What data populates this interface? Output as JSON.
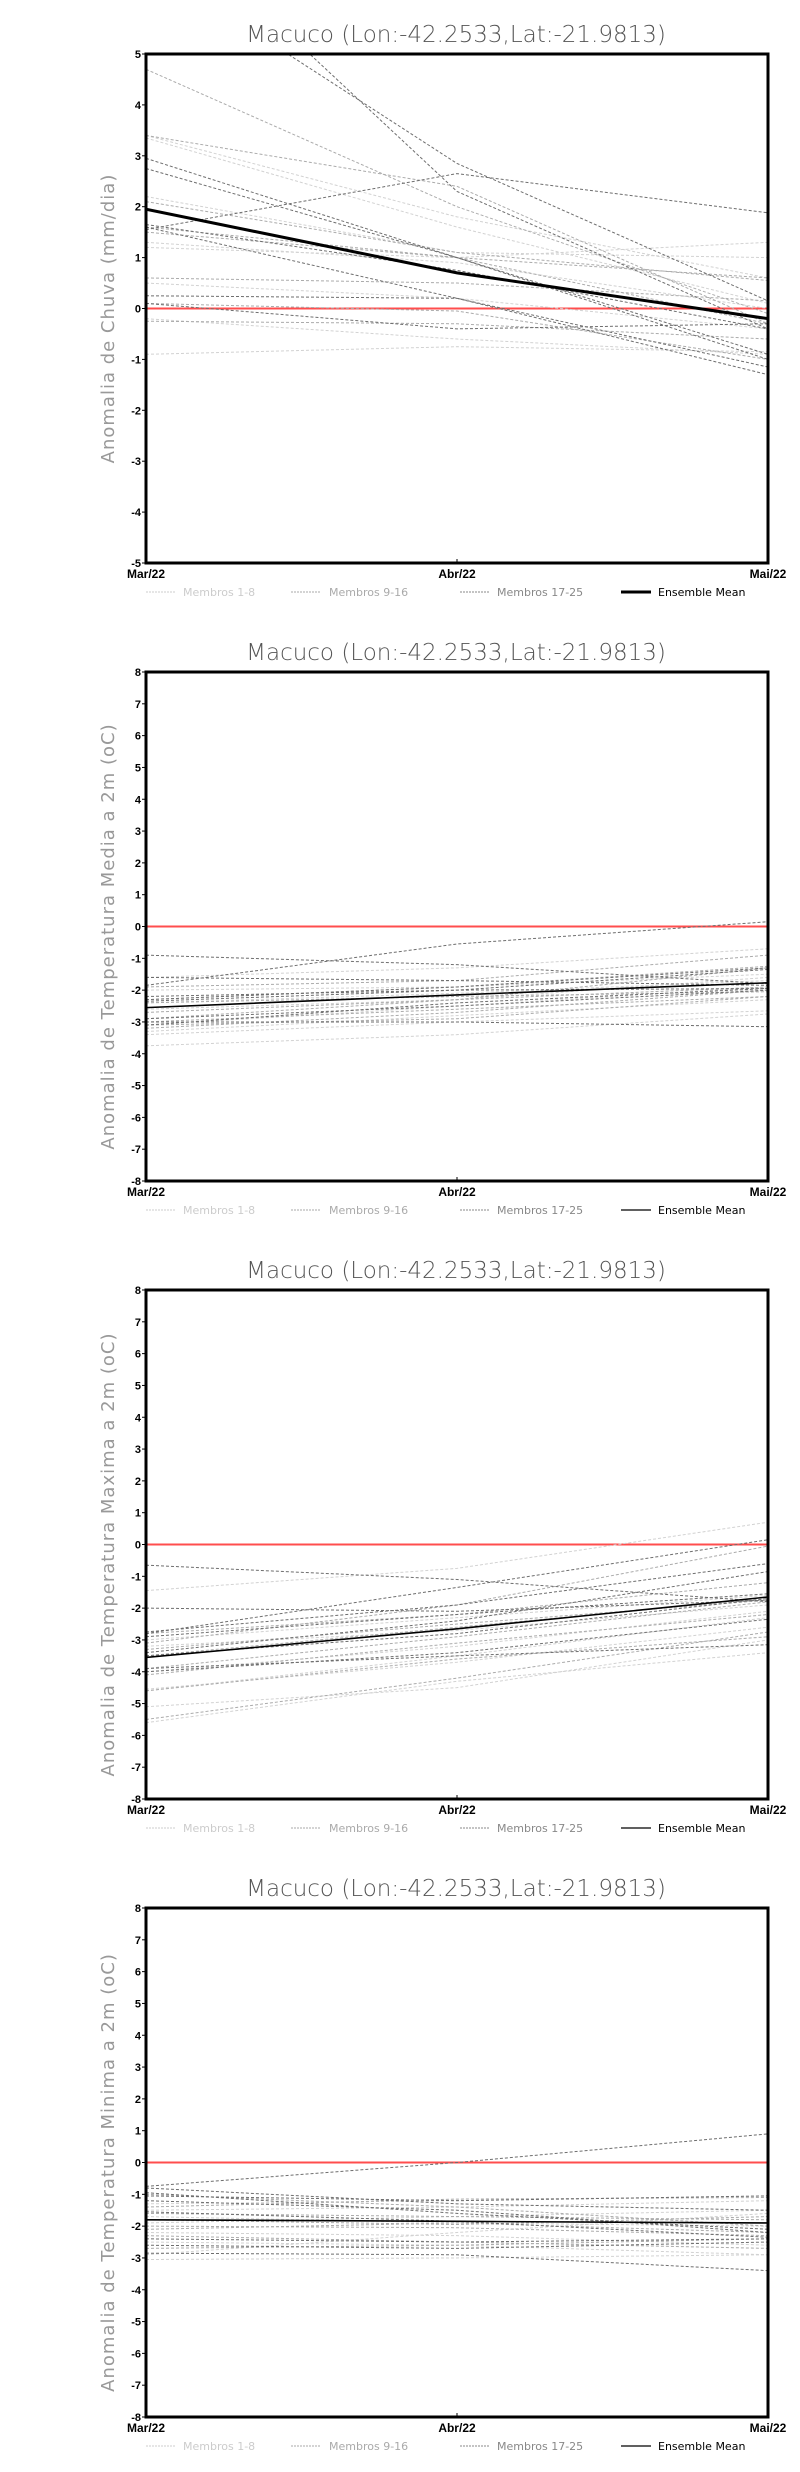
{
  "legend": {
    "group1": "Membros 1-8",
    "group2": "Membros 9-16",
    "group3": "Membros 17-25",
    "mean": "Ensemble Mean"
  },
  "colors": {
    "group1": "#d2d2d2",
    "group2": "#ababab",
    "group3": "#6e6e6e",
    "mean": "#000000",
    "zero_line": "#ff4d4d"
  },
  "chart_data": [
    {
      "type": "line",
      "title": "Macuco (Lon:-42.2533,Lat:-21.9813)",
      "ylabel": "Anomalia de Chuva (mm/dia)",
      "categories": [
        "Mar/22",
        "Abr/22",
        "Mai/22"
      ],
      "ylim": [
        -5,
        5
      ],
      "yticks": [
        "5",
        "4",
        "3",
        "2",
        "1",
        "0",
        "-1",
        "-2",
        "-3",
        "-4",
        "-5"
      ],
      "mean_bold": true,
      "members": [
        [
          3.4,
          1.8,
          0.6
        ],
        [
          3.35,
          1.6,
          0.1
        ],
        [
          1.2,
          1.0,
          1.3
        ],
        [
          -0.9,
          -0.75,
          -0.85
        ],
        [
          2.2,
          1.1,
          1.0
        ],
        [
          0.5,
          0.2,
          -0.4
        ],
        [
          -0.2,
          -0.6,
          -0.9
        ],
        [
          1.3,
          0.9,
          0.0
        ],
        [
          4.7,
          2.0,
          -0.1
        ],
        [
          1.6,
          1.0,
          0.6
        ],
        [
          -0.25,
          -0.3,
          -0.6
        ],
        [
          0.6,
          0.5,
          0.15
        ],
        [
          1.5,
          1.0,
          -0.3
        ],
        [
          0.1,
          -0.05,
          -1.0
        ],
        [
          3.4,
          2.4,
          -0.3
        ],
        [
          2.1,
          1.1,
          0.55
        ],
        [
          6.8,
          2.85,
          0.15
        ],
        [
          8.0,
          2.3,
          -0.4
        ],
        [
          1.55,
          2.65,
          1.88
        ],
        [
          2.95,
          1.0,
          -1.0
        ],
        [
          2.75,
          1.0,
          -0.9
        ],
        [
          1.65,
          0.75,
          -0.4
        ],
        [
          0.25,
          0.2,
          -1.3
        ],
        [
          0.1,
          -0.4,
          -0.3
        ],
        [
          1.6,
          0.2,
          -1.15
        ]
      ],
      "mean": [
        1.95,
        0.7,
        -0.2
      ]
    },
    {
      "type": "line",
      "title": "Macuco (Lon:-42.2533,Lat:-21.9813)",
      "ylabel": "Anomalia de Temperatura Media a 2m (oC)",
      "categories": [
        "Mar/22",
        "Abr/22",
        "Mai/22"
      ],
      "ylim": [
        -8,
        8
      ],
      "yticks": [
        "8",
        "7",
        "6",
        "5",
        "4",
        "3",
        "2",
        "1",
        "0",
        "-1",
        "-2",
        "-3",
        "-4",
        "-5",
        "-6",
        "-7",
        "-8"
      ],
      "mean_bold": false,
      "members": [
        [
          -3.75,
          -3.4,
          -2.75
        ],
        [
          -3.3,
          -2.8,
          -2.3
        ],
        [
          -1.6,
          -1.3,
          -0.7
        ],
        [
          -2.6,
          -2.3,
          -1.6
        ],
        [
          -3.1,
          -2.5,
          -1.9
        ],
        [
          -2.0,
          -1.9,
          -1.5
        ],
        [
          -3.4,
          -3.0,
          -2.65
        ],
        [
          -2.4,
          -2.1,
          -1.7
        ],
        [
          -2.9,
          -2.3,
          -1.3
        ],
        [
          -3.0,
          -2.6,
          -2.2
        ],
        [
          -2.3,
          -1.9,
          -1.25
        ],
        [
          -3.2,
          -2.7,
          -2.0
        ],
        [
          -2.7,
          -2.3,
          -1.9
        ],
        [
          -1.9,
          -1.7,
          -0.9
        ],
        [
          -2.4,
          -2.2,
          -2.05
        ],
        [
          -3.1,
          -2.9,
          -2.2
        ],
        [
          -1.85,
          -0.55,
          0.15
        ],
        [
          -0.9,
          -1.2,
          -1.8
        ],
        [
          -1.6,
          -1.7,
          -1.85
        ],
        [
          -2.3,
          -1.9,
          -1.3
        ],
        [
          -3.0,
          -3.0,
          -3.15
        ],
        [
          -2.35,
          -2.0,
          -1.35
        ],
        [
          -2.9,
          -2.5,
          -2.0
        ],
        [
          -3.1,
          -2.4,
          -1.95
        ],
        [
          -2.2,
          -2.0,
          -1.95
        ]
      ],
      "mean": [
        -2.55,
        -2.15,
        -1.77
      ]
    },
    {
      "type": "line",
      "title": "Macuco (Lon:-42.2533,Lat:-21.9813)",
      "ylabel": "Anomalia de Temperatura Maxima a 2m (oC)",
      "categories": [
        "Mar/22",
        "Abr/22",
        "Mai/22"
      ],
      "ylim": [
        -8,
        8
      ],
      "yticks": [
        "8",
        "7",
        "6",
        "5",
        "4",
        "3",
        "2",
        "1",
        "0",
        "-1",
        "-2",
        "-3",
        "-4",
        "-5",
        "-6",
        "-7",
        "-8"
      ],
      "mean_bold": false,
      "members": [
        [
          -1.45,
          -0.75,
          0.7
        ],
        [
          -4.6,
          -3.5,
          -2.3
        ],
        [
          -5.6,
          -4.3,
          -3.4
        ],
        [
          -5.1,
          -4.5,
          -3.0
        ],
        [
          -4.55,
          -3.7,
          -2.6
        ],
        [
          -3.2,
          -2.7,
          -1.9
        ],
        [
          -3.0,
          -2.3,
          -1.6
        ],
        [
          -4.0,
          -3.2,
          -2.1
        ],
        [
          -5.5,
          -4.2,
          -2.75
        ],
        [
          -3.9,
          -2.9,
          -1.8
        ],
        [
          -3.1,
          -1.9,
          -0.05
        ],
        [
          -4.6,
          -3.6,
          -2.9
        ],
        [
          -3.5,
          -2.6,
          -1.7
        ],
        [
          -2.8,
          -2.2,
          -1.2
        ],
        [
          -4.1,
          -3.1,
          -2.2
        ],
        [
          -3.3,
          -2.5,
          -1.75
        ],
        [
          -0.65,
          -1.1,
          -1.8
        ],
        [
          -2.0,
          -2.1,
          -1.75
        ],
        [
          -2.75,
          -1.9,
          -0.6
        ],
        [
          -3.4,
          -2.4,
          -0.85
        ],
        [
          -4.0,
          -3.4,
          -2.35
        ],
        [
          -3.9,
          -3.5,
          -3.15
        ],
        [
          -2.9,
          -2.2,
          -1.55
        ],
        [
          -3.5,
          -2.8,
          -1.7
        ],
        [
          -2.8,
          -1.35,
          0.15
        ]
      ],
      "mean": [
        -3.55,
        -2.65,
        -1.65
      ]
    },
    {
      "type": "line",
      "title": "Macuco (Lon:-42.2533,Lat:-21.9813)",
      "ylabel": "Anomalia de Temperatura Minima a 2m (oC)",
      "categories": [
        "Mar/22",
        "Abr/22",
        "Mai/22"
      ],
      "ylim": [
        -8,
        8
      ],
      "yticks": [
        "8",
        "7",
        "6",
        "5",
        "4",
        "3",
        "2",
        "1",
        "0",
        "-1",
        "-2",
        "-3",
        "-4",
        "-5",
        "-6",
        "-7",
        "-8"
      ],
      "mean_bold": false,
      "members": [
        [
          -1.3,
          -1.2,
          -1.05
        ],
        [
          -2.2,
          -2.3,
          -2.6
        ],
        [
          -3.05,
          -3.0,
          -2.9
        ],
        [
          -1.5,
          -1.4,
          -1.2
        ],
        [
          -2.9,
          -2.2,
          -1.6
        ],
        [
          -1.9,
          -1.7,
          -1.5
        ],
        [
          -2.5,
          -2.6,
          -2.9
        ],
        [
          -1.7,
          -1.9,
          -2.0
        ],
        [
          -1.4,
          -1.15,
          -1.1
        ],
        [
          -2.3,
          -2.5,
          -2.7
        ],
        [
          -1.6,
          -1.7,
          -1.8
        ],
        [
          -2.1,
          -1.9,
          -2.2
        ],
        [
          -1.0,
          -1.4,
          -2.0
        ],
        [
          -2.7,
          -2.6,
          -2.4
        ],
        [
          -1.8,
          -1.95,
          -1.7
        ],
        [
          -2.0,
          -2.05,
          -2.3
        ],
        [
          -0.75,
          0.0,
          0.9
        ],
        [
          -0.8,
          -1.3,
          -1.5
        ],
        [
          -1.05,
          -1.2,
          -1.05
        ],
        [
          -2.6,
          -2.7,
          -2.5
        ],
        [
          -2.85,
          -2.9,
          -3.4
        ],
        [
          -1.2,
          -1.5,
          -2.2
        ],
        [
          -2.4,
          -2.5,
          -2.4
        ],
        [
          -0.95,
          -1.6,
          -2.1
        ],
        [
          -1.55,
          -1.85,
          -2.35
        ]
      ],
      "mean": [
        -1.8,
        -1.85,
        -1.9
      ]
    }
  ]
}
